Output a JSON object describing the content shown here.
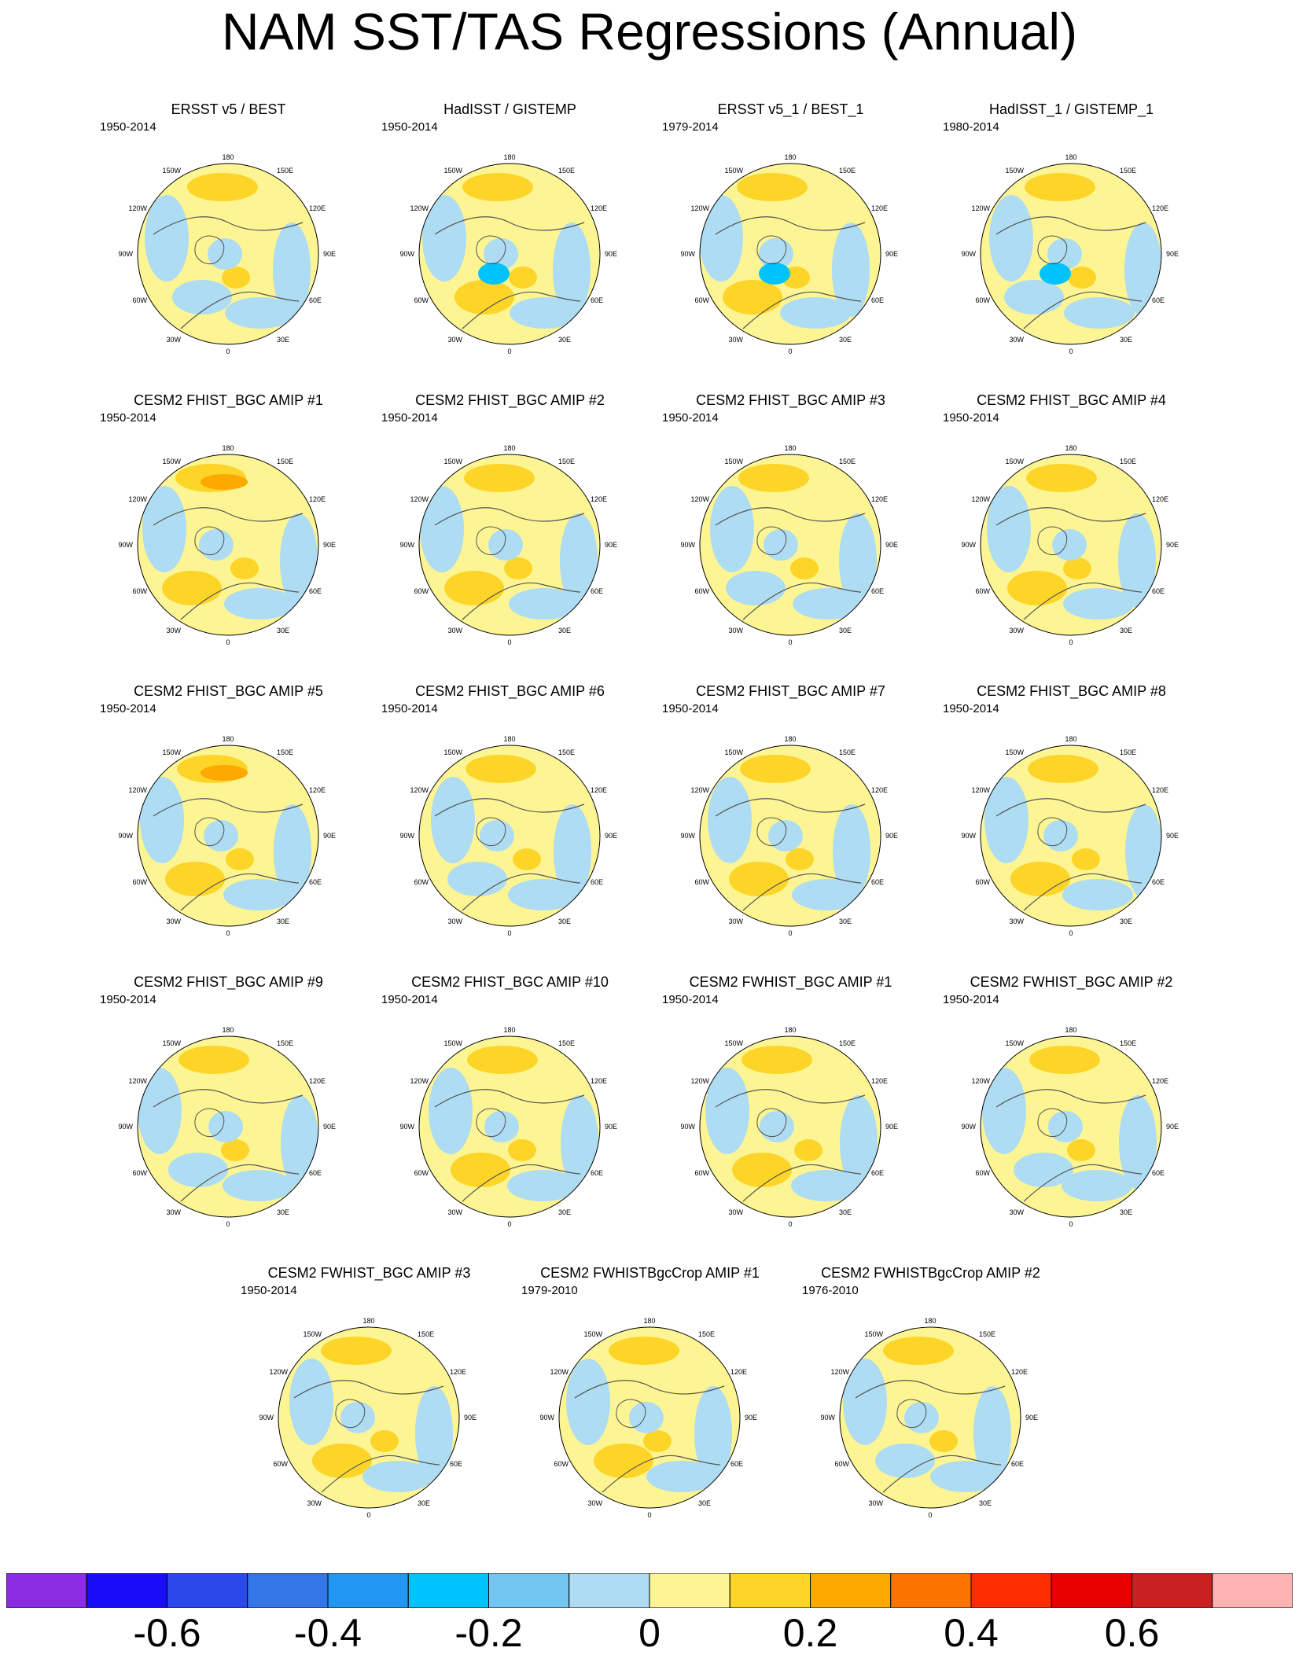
{
  "title": "NAM SST/TAS Regressions (Annual)",
  "map_labels": {
    "top": "180",
    "bottom": "0",
    "left": "90W",
    "right": "90E",
    "upper_left_1": "150W",
    "upper_left_2": "120W",
    "upper_right_1": "150E",
    "upper_right_2": "120E",
    "lower_left_1": "60W",
    "lower_left_2": "30W",
    "lower_right_1": "60E",
    "lower_right_2": "30E"
  },
  "panels": [
    {
      "title": "ERSST v5 / BEST",
      "years": "1950-2014"
    },
    {
      "title": "HadISST / GISTEMP",
      "years": "1950-2014"
    },
    {
      "title": "ERSST v5_1 / BEST_1",
      "years": "1979-2014"
    },
    {
      "title": "HadISST_1 / GISTEMP_1",
      "years": "1980-2014"
    },
    {
      "title": "CESM2 FHIST_BGC AMIP #1",
      "years": "1950-2014"
    },
    {
      "title": "CESM2 FHIST_BGC AMIP #2",
      "years": "1950-2014"
    },
    {
      "title": "CESM2 FHIST_BGC AMIP #3",
      "years": "1950-2014"
    },
    {
      "title": "CESM2 FHIST_BGC AMIP #4",
      "years": "1950-2014"
    },
    {
      "title": "CESM2 FHIST_BGC AMIP #5",
      "years": "1950-2014"
    },
    {
      "title": "CESM2 FHIST_BGC AMIP #6",
      "years": "1950-2014"
    },
    {
      "title": "CESM2 FHIST_BGC AMIP #7",
      "years": "1950-2014"
    },
    {
      "title": "CESM2 FHIST_BGC AMIP #8",
      "years": "1950-2014"
    },
    {
      "title": "CESM2 FHIST_BGC AMIP #9",
      "years": "1950-2014"
    },
    {
      "title": "CESM2 FHIST_BGC AMIP #10",
      "years": "1950-2014"
    },
    {
      "title": "CESM2 FWHIST_BGC AMIP #1",
      "years": "1950-2014"
    },
    {
      "title": "CESM2 FWHIST_BGC AMIP #2",
      "years": "1950-2014"
    },
    {
      "title": "CESM2 FWHIST_BGC AMIP #3",
      "years": "1950-2014"
    },
    {
      "title": "CESM2 FWHISTBgcCrop AMIP #1",
      "years": "1979-2010"
    },
    {
      "title": "CESM2 FWHISTBgcCrop AMIP #2",
      "years": "1976-2010"
    }
  ],
  "colorbar": {
    "colors": [
      "#8b2be2",
      "#1a0cf7",
      "#2d48e8",
      "#3476e8",
      "#2196f3",
      "#00c2fc",
      "#73c6f2",
      "#aedcf2",
      "#fdf593",
      "#fdd529",
      "#fda900",
      "#fc7300",
      "#fc2d00",
      "#e60000",
      "#c9211f",
      "#fdb3b3"
    ],
    "tick_labels": [
      "-0.6",
      "-0.4",
      "-0.2",
      "0",
      "0.2",
      "0.4",
      "0.6"
    ]
  }
}
